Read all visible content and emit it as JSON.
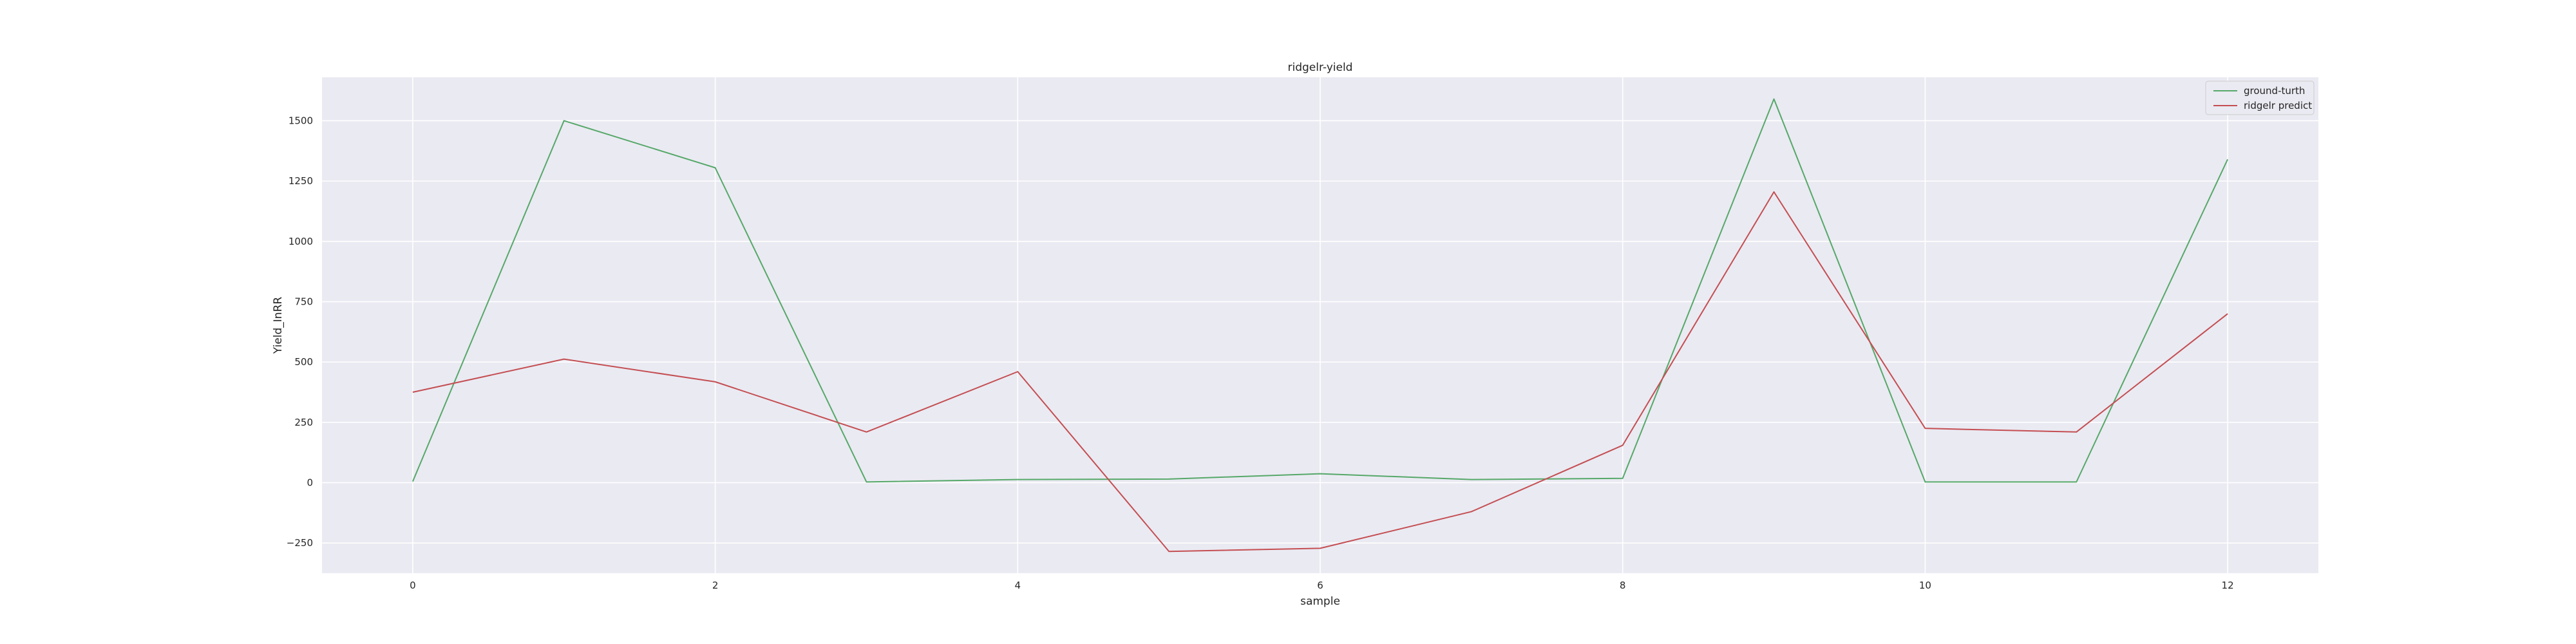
{
  "chart_data": {
    "type": "line",
    "title": "ridgelr-yield",
    "xlabel": "sample",
    "ylabel": "Yield_InRR",
    "x": [
      0,
      1,
      2,
      3,
      4,
      5,
      6,
      7,
      8,
      9,
      10,
      11,
      12
    ],
    "xlim": [
      -0.6,
      12.6
    ],
    "ylim": [
      -375,
      1680
    ],
    "xticks": [
      0,
      2,
      4,
      6,
      8,
      10,
      12
    ],
    "xtick_labels": [
      "0",
      "2",
      "4",
      "6",
      "8",
      "10",
      "12"
    ],
    "yticks": [
      -250,
      0,
      250,
      500,
      750,
      1000,
      1250,
      1500
    ],
    "ytick_labels": [
      "−250",
      "0",
      "250",
      "500",
      "750",
      "1000",
      "1250",
      "1500"
    ],
    "grid": true,
    "legend_position": "top-right",
    "series": [
      {
        "name": "ground-turth",
        "color": "#55a868",
        "values": [
          5,
          1500,
          1305,
          3,
          13,
          15,
          37,
          13,
          18,
          1590,
          3,
          3,
          1340
        ]
      },
      {
        "name": "ridgelr predict",
        "color": "#c44e52",
        "values": [
          375,
          512,
          418,
          210,
          460,
          -285,
          -272,
          -120,
          155,
          1205,
          225,
          210,
          700
        ]
      }
    ]
  },
  "colors": {
    "plot_background": "#eaeaf2",
    "gridline": "#ffffff",
    "text": "#262626"
  }
}
